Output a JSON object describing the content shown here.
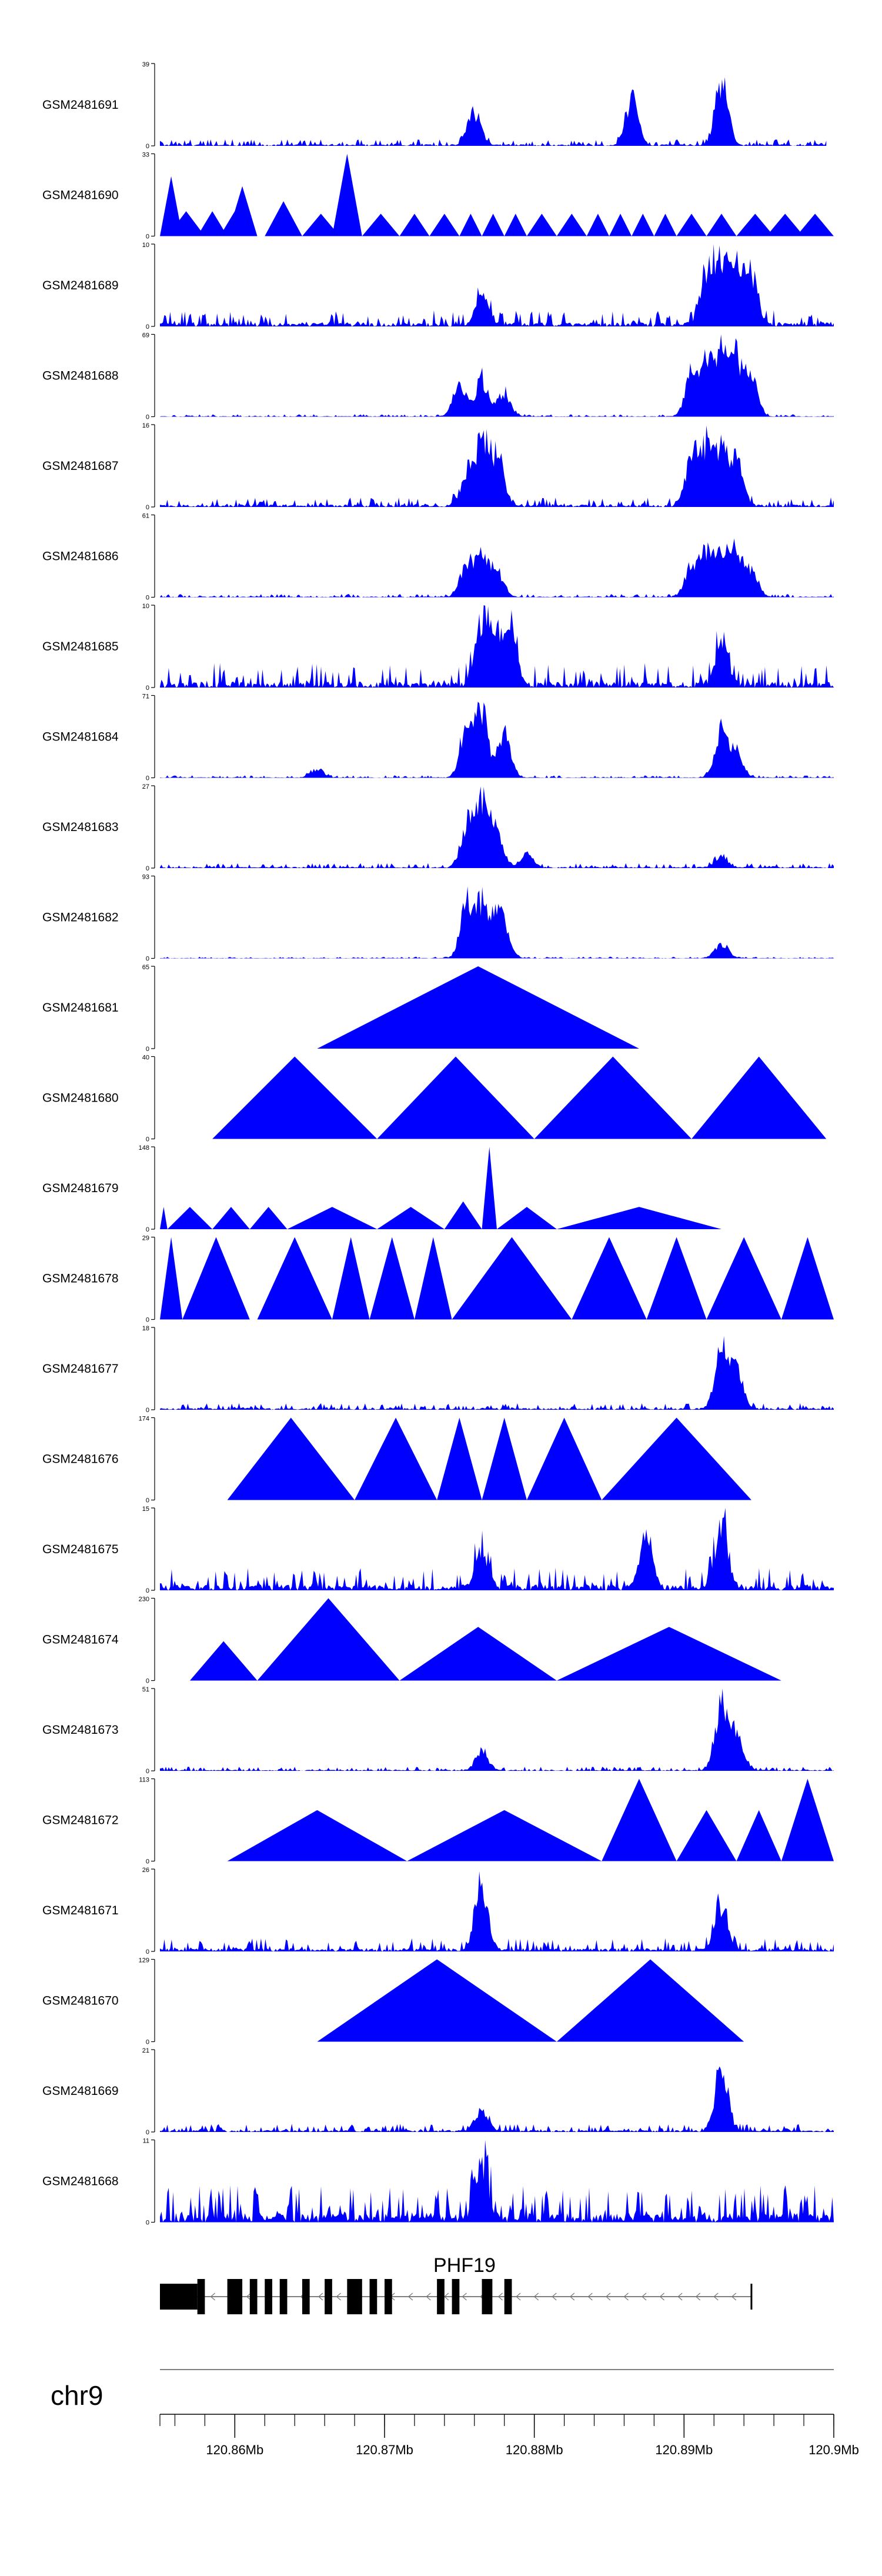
{
  "chart_data": {
    "type": "area",
    "chromosome": "chr9",
    "x_range_mb": [
      120.855,
      120.9
    ],
    "tracks": [
      {
        "name": "GSM2481691",
        "ymax": 39,
        "style": "dense",
        "peaks": [
          [
            120.876,
            20
          ],
          [
            120.8865,
            27
          ],
          [
            120.8925,
            39
          ]
        ],
        "noise": 0.08,
        "seed": 11,
        "span": [
          120.855,
          120.8995
        ]
      },
      {
        "name": "GSM2481690",
        "ymax": 33,
        "style": "triangles",
        "tri": [
          [
            120.855,
            120.8565,
            24
          ],
          [
            120.8555,
            120.858,
            10
          ],
          [
            120.8575,
            120.8595,
            10
          ],
          [
            120.859,
            120.861,
            10
          ],
          [
            120.8595,
            120.8615,
            20
          ],
          [
            120.862,
            120.8645,
            14
          ],
          [
            120.8645,
            120.867,
            9
          ],
          [
            120.8665,
            120.8685,
            33
          ],
          [
            120.8685,
            120.871,
            9
          ],
          [
            120.871,
            120.873,
            9
          ],
          [
            120.873,
            120.875,
            9
          ],
          [
            120.875,
            120.8765,
            9
          ],
          [
            120.8765,
            120.878,
            9
          ],
          [
            120.878,
            120.8795,
            9
          ],
          [
            120.8795,
            120.8815,
            9
          ],
          [
            120.8815,
            120.8835,
            9
          ],
          [
            120.8835,
            120.885,
            9
          ],
          [
            120.885,
            120.8865,
            9
          ],
          [
            120.8865,
            120.888,
            9
          ],
          [
            120.888,
            120.8895,
            9
          ],
          [
            120.8895,
            120.8915,
            9
          ],
          [
            120.8915,
            120.8935,
            9
          ],
          [
            120.8935,
            120.896,
            9
          ],
          [
            120.8955,
            120.898,
            9
          ],
          [
            120.8975,
            120.9,
            9
          ]
        ]
      },
      {
        "name": "GSM2481689",
        "ymax": 10,
        "style": "dense",
        "peaks": [
          [
            120.8915,
            8
          ],
          [
            120.8925,
            10
          ],
          [
            120.8935,
            9
          ],
          [
            120.8945,
            7
          ],
          [
            120.8765,
            4
          ]
        ],
        "noise": 0.2,
        "seed": 23,
        "span": [
          120.855,
          120.9
        ]
      },
      {
        "name": "GSM2481688",
        "ymax": 69,
        "style": "dense",
        "peaks": [
          [
            120.875,
            35
          ],
          [
            120.8765,
            40
          ],
          [
            120.878,
            25
          ],
          [
            120.8905,
            45
          ],
          [
            120.8915,
            55
          ],
          [
            120.8925,
            69
          ],
          [
            120.8935,
            60
          ],
          [
            120.8945,
            40
          ]
        ],
        "noise": 0.03,
        "seed": 31,
        "span": [
          120.855,
          120.9
        ]
      },
      {
        "name": "GSM2481687",
        "ymax": 16,
        "style": "dense",
        "peaks": [
          [
            120.8755,
            8
          ],
          [
            120.8765,
            16
          ],
          [
            120.8775,
            12
          ],
          [
            120.8905,
            12
          ],
          [
            120.8915,
            14
          ],
          [
            120.8925,
            13
          ],
          [
            120.8935,
            11
          ]
        ],
        "noise": 0.12,
        "seed": 37,
        "span": [
          120.855,
          120.9
        ]
      },
      {
        "name": "GSM2481686",
        "ymax": 61,
        "style": "dense",
        "peaks": [
          [
            120.8755,
            30
          ],
          [
            120.8765,
            38
          ],
          [
            120.8775,
            25
          ],
          [
            120.8905,
            30
          ],
          [
            120.8915,
            38
          ],
          [
            120.8925,
            44
          ],
          [
            120.8935,
            40
          ],
          [
            120.8945,
            24
          ]
        ],
        "noise": 0.04,
        "seed": 41,
        "span": [
          120.855,
          120.9
        ]
      },
      {
        "name": "GSM2481685",
        "ymax": 10,
        "style": "dense",
        "peaks": [
          [
            120.8765,
            10
          ],
          [
            120.8775,
            8
          ],
          [
            120.8785,
            7
          ],
          [
            120.8925,
            6
          ]
        ],
        "noise": 0.3,
        "seed": 43,
        "span": [
          120.855,
          120.9
        ]
      },
      {
        "name": "GSM2481684",
        "ymax": 71,
        "style": "dense",
        "peaks": [
          [
            120.8755,
            60
          ],
          [
            120.8765,
            68
          ],
          [
            120.878,
            50
          ],
          [
            120.8925,
            50
          ],
          [
            120.8935,
            30
          ],
          [
            120.8655,
            10
          ]
        ],
        "noise": 0.03,
        "seed": 47,
        "span": [
          120.855,
          120.9
        ]
      },
      {
        "name": "GSM2481683",
        "ymax": 27,
        "style": "dense",
        "peaks": [
          [
            120.8755,
            18
          ],
          [
            120.8765,
            27
          ],
          [
            120.8775,
            14
          ],
          [
            120.8795,
            6
          ],
          [
            120.8925,
            5
          ]
        ],
        "noise": 0.06,
        "seed": 53,
        "span": [
          120.855,
          120.9
        ]
      },
      {
        "name": "GSM2481682",
        "ymax": 93,
        "style": "dense",
        "peaks": [
          [
            120.8755,
            80
          ],
          [
            120.8765,
            75
          ],
          [
            120.8775,
            50
          ],
          [
            120.878,
            35
          ],
          [
            120.8925,
            22
          ]
        ],
        "noise": 0.02,
        "seed": 59,
        "span": [
          120.855,
          120.9
        ]
      },
      {
        "name": "GSM2481681",
        "ymax": 65,
        "style": "triangles",
        "tri": [
          [
            120.8655,
            120.887,
            65
          ]
        ]
      },
      {
        "name": "GSM2481680",
        "ymax": 40,
        "style": "triangles",
        "tri": [
          [
            120.8585,
            120.8695,
            40
          ],
          [
            120.8695,
            120.88,
            40
          ],
          [
            120.88,
            120.8905,
            40
          ],
          [
            120.8905,
            120.8995,
            40
          ]
        ]
      },
      {
        "name": "GSM2481679",
        "ymax": 148,
        "style": "triangles",
        "tri": [
          [
            120.855,
            120.8555,
            40
          ],
          [
            120.8555,
            120.8585,
            40
          ],
          [
            120.8585,
            120.861,
            40
          ],
          [
            120.861,
            120.8635,
            40
          ],
          [
            120.8635,
            120.8695,
            40
          ],
          [
            120.8695,
            120.874,
            40
          ],
          [
            120.874,
            120.8765,
            50
          ],
          [
            120.8765,
            120.8775,
            148
          ],
          [
            120.8775,
            120.8815,
            40
          ],
          [
            120.8815,
            120.8925,
            40
          ]
        ]
      },
      {
        "name": "GSM2481678",
        "ymax": 29,
        "style": "triangles",
        "tri": [
          [
            120.855,
            120.8565,
            29
          ],
          [
            120.8565,
            120.861,
            29
          ],
          [
            120.8615,
            120.8665,
            29
          ],
          [
            120.8665,
            120.869,
            29
          ],
          [
            120.869,
            120.872,
            29
          ],
          [
            120.872,
            120.8745,
            29
          ],
          [
            120.8745,
            120.8825,
            29
          ],
          [
            120.8825,
            120.8875,
            29
          ],
          [
            120.8875,
            120.8915,
            29
          ],
          [
            120.8915,
            120.8965,
            29
          ],
          [
            120.8965,
            120.9,
            29
          ]
        ]
      },
      {
        "name": "GSM2481677",
        "ymax": 18,
        "style": "dense",
        "peaks": [
          [
            120.8925,
            18
          ],
          [
            120.8935,
            10
          ]
        ],
        "noise": 0.08,
        "seed": 61,
        "span": [
          120.855,
          120.9
        ]
      },
      {
        "name": "GSM2481676",
        "ymax": 174,
        "style": "triangles",
        "tri": [
          [
            120.8595,
            120.868,
            174
          ],
          [
            120.868,
            120.8735,
            174
          ],
          [
            120.8735,
            120.8765,
            174
          ],
          [
            120.8765,
            120.8795,
            174
          ],
          [
            120.8795,
            120.8845,
            174
          ],
          [
            120.8845,
            120.8945,
            174
          ]
        ]
      },
      {
        "name": "GSM2481675",
        "ymax": 15,
        "style": "dense",
        "peaks": [
          [
            120.8925,
            15
          ],
          [
            120.8875,
            11
          ],
          [
            120.8765,
            9
          ]
        ],
        "noise": 0.28,
        "seed": 67,
        "span": [
          120.855,
          120.9
        ]
      },
      {
        "name": "GSM2481674",
        "ymax": 230,
        "style": "triangles",
        "tri": [
          [
            120.857,
            120.8615,
            110
          ],
          [
            120.8615,
            120.871,
            230
          ],
          [
            120.871,
            120.8815,
            150
          ],
          [
            120.8815,
            120.8965,
            150
          ]
        ]
      },
      {
        "name": "GSM2481673",
        "ymax": 51,
        "style": "dense",
        "peaks": [
          [
            120.8925,
            51
          ],
          [
            120.8935,
            30
          ],
          [
            120.8765,
            15
          ]
        ],
        "noise": 0.05,
        "seed": 71,
        "span": [
          120.855,
          120.9
        ]
      },
      {
        "name": "GSM2481672",
        "ymax": 113,
        "style": "triangles",
        "tri": [
          [
            120.8595,
            120.8715,
            70
          ],
          [
            120.8715,
            120.8845,
            70
          ],
          [
            120.8845,
            120.8895,
            113
          ],
          [
            120.8895,
            120.8935,
            70
          ],
          [
            120.8935,
            120.8965,
            70
          ],
          [
            120.8965,
            120.9,
            113
          ]
        ]
      },
      {
        "name": "GSM2481671",
        "ymax": 26,
        "style": "dense",
        "peaks": [
          [
            120.8765,
            26
          ],
          [
            120.8925,
            18
          ]
        ],
        "noise": 0.16,
        "seed": 73,
        "span": [
          120.855,
          120.9
        ]
      },
      {
        "name": "GSM2481670",
        "ymax": 129,
        "style": "triangles",
        "tri": [
          [
            120.8655,
            120.8815,
            129
          ],
          [
            120.8815,
            120.894,
            129
          ]
        ]
      },
      {
        "name": "GSM2481669",
        "ymax": 21,
        "style": "dense",
        "peaks": [
          [
            120.8925,
            21
          ],
          [
            120.8765,
            7
          ]
        ],
        "noise": 0.1,
        "seed": 79,
        "span": [
          120.855,
          120.9
        ]
      },
      {
        "name": "GSM2481668",
        "ymax": 11,
        "style": "dense",
        "peaks": [
          [
            120.8765,
            10
          ]
        ],
        "noise": 0.45,
        "seed": 83,
        "span": [
          120.855,
          120.9
        ]
      }
    ],
    "gene": {
      "name": "PHF19",
      "strand": "-",
      "start": 120.855,
      "end": 120.894,
      "utr": [
        [
          120.855,
          120.8575
        ]
      ],
      "exons": [
        [
          120.8575,
          120.858
        ],
        [
          120.8595,
          120.8605
        ],
        [
          120.861,
          120.8615
        ],
        [
          120.862,
          120.8625
        ],
        [
          120.863,
          120.8635
        ],
        [
          120.8645,
          120.865
        ],
        [
          120.866,
          120.8665
        ],
        [
          120.8675,
          120.8685
        ],
        [
          120.869,
          120.8695
        ],
        [
          120.87,
          120.8705
        ],
        [
          120.8735,
          120.874
        ],
        [
          120.8745,
          120.875
        ],
        [
          120.8765,
          120.8772
        ],
        [
          120.878,
          120.8785
        ]
      ],
      "tss": 120.8945
    },
    "axis": {
      "ticks": [
        120.86,
        120.87,
        120.88,
        120.89,
        120.9
      ],
      "tick_labels": [
        "120.86Mb",
        "120.87Mb",
        "120.88Mb",
        "120.89Mb",
        "120.9Mb"
      ],
      "minor_tick_step": 0.002
    },
    "colors": {
      "fill": "#0000ff",
      "axis": "#000000",
      "gene": "#000000",
      "rule": "#808080"
    }
  }
}
